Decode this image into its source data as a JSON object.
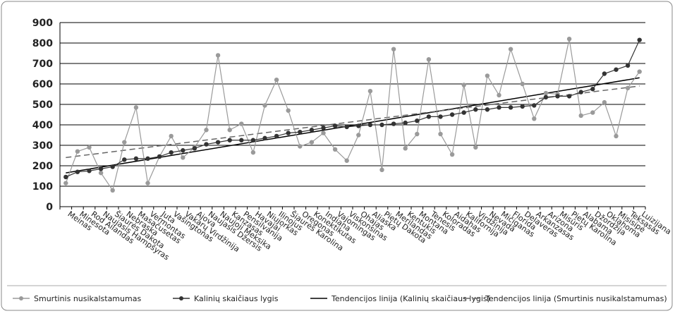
{
  "chart_data": {
    "type": "line",
    "categories": [
      "Meinas",
      "Minesota",
      "Rod Ailandas",
      "Naujasis Hampšyras",
      "Šiaurės Dakota",
      "Nebraska",
      "Masačusetas",
      "Vermontas",
      "Juta",
      "Vašingtonas",
      "Vakarų Virdžinija",
      "Ajova",
      "Naujasis Džersis",
      "Naujoji Meksika",
      "Kanzasas",
      "Pensilvanija",
      "Havajai",
      "Niujorkas",
      "Ilinojus",
      "Šiaurės Karolina",
      "Oregonas",
      "Konektikutas",
      "Indiana",
      "Vajomingas",
      "Viskonsinas",
      "Ohajas",
      "Aliaska",
      "Pietų Dakota",
      "Merilandas",
      "Kentukis",
      "Montana",
      "Tenesis",
      "Koloradas",
      "Aidahas",
      "Kalifornija",
      "Virdžinija",
      "Nevada",
      "Mičiganas",
      "Florida",
      "Delaveras",
      "Arkanzasas",
      "Arizona",
      "Misūris",
      "Pietų Karolina",
      "Alabama",
      "Džordžija",
      "Oklahoma",
      "Misisipė",
      "Teksasas",
      "Luizijana"
    ],
    "series": [
      {
        "name": "Smurtinis nusikalstamumas",
        "color": "#9a9a9a",
        "values": [
          115,
          270,
          290,
          165,
          80,
          315,
          485,
          115,
          245,
          345,
          240,
          290,
          375,
          740,
          375,
          405,
          265,
          495,
          620,
          470,
          295,
          315,
          360,
          280,
          225,
          350,
          565,
          180,
          770,
          285,
          355,
          720,
          355,
          255,
          595,
          290,
          640,
          545,
          770,
          600,
          430,
          555,
          550,
          820,
          445,
          460,
          510,
          345,
          580,
          660
        ]
      },
      {
        "name": "Kalinių skaičiaus lygis",
        "color": "#333333",
        "values": [
          145,
          170,
          175,
          185,
          195,
          230,
          235,
          235,
          245,
          265,
          275,
          285,
          305,
          315,
          325,
          325,
          325,
          335,
          345,
          360,
          365,
          375,
          385,
          395,
          390,
          395,
          400,
          400,
          405,
          410,
          420,
          440,
          440,
          450,
          460,
          475,
          475,
          485,
          485,
          490,
          495,
          535,
          540,
          540,
          560,
          575,
          650,
          670,
          690,
          815
        ]
      }
    ],
    "trendlines": [
      {
        "name": "Tendencijos linija (Kalinių skaičiaus lygis)",
        "color": "#000000",
        "dashed": false,
        "values": [
          165,
          630
        ]
      },
      {
        "name": "Tendencijos linija (Smurtinis nusikalstamumas)",
        "color": "#666666",
        "dashed": true,
        "values": [
          240,
          590
        ]
      }
    ],
    "ylim": [
      0,
      900
    ],
    "yticks": [
      0,
      100,
      200,
      300,
      400,
      500,
      600,
      700,
      800,
      900
    ],
    "grid": true
  }
}
